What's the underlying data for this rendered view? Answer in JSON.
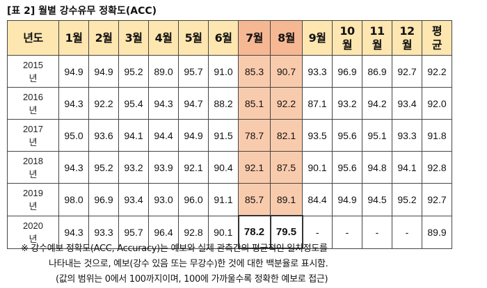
{
  "caption": "[표 2] 월별 강수유무 정확도(ACC)",
  "table": {
    "headers": [
      "년도",
      "1월",
      "2월",
      "3월",
      "4월",
      "5월",
      "6월",
      "7월",
      "8월",
      "9월",
      "10\n월",
      "11\n월",
      "12\n월",
      "평\n균"
    ],
    "rows": [
      {
        "year": "2015\n년",
        "values": [
          "94.9",
          "94.9",
          "95.2",
          "89.0",
          "95.7",
          "91.0",
          "85.3",
          "90.7",
          "93.3",
          "96.9",
          "86.9",
          "92.7",
          "92.2"
        ]
      },
      {
        "year": "2016\n년",
        "values": [
          "94.3",
          "92.2",
          "95.4",
          "94.3",
          "94.7",
          "88.2",
          "85.1",
          "92.2",
          "87.1",
          "93.2",
          "94.2",
          "93.4",
          "92.0"
        ]
      },
      {
        "year": "2017\n년",
        "values": [
          "95.0",
          "93.6",
          "94.1",
          "94.4",
          "94.9",
          "91.5",
          "78.7",
          "82.1",
          "93.5",
          "95.6",
          "95.1",
          "93.3",
          "91.8"
        ]
      },
      {
        "year": "2018\n년",
        "values": [
          "94.3",
          "95.2",
          "93.2",
          "93.9",
          "92.1",
          "90.4",
          "92.1",
          "87.5",
          "90.1",
          "95.6",
          "94.8",
          "94.1",
          "92.8"
        ]
      },
      {
        "year": "2019\n년",
        "values": [
          "98.0",
          "96.9",
          "93.4",
          "93.0",
          "96.0",
          "91.1",
          "85.7",
          "89.1",
          "84.4",
          "94.9",
          "94.5",
          "95.2",
          "92.7"
        ]
      },
      {
        "year": "2020\n년",
        "values": [
          "94.3",
          "93.3",
          "95.7",
          "96.4",
          "92.8",
          "90.1",
          "78.2",
          "79.5",
          "-",
          "-",
          "-",
          "-",
          "89.9"
        ]
      }
    ]
  },
  "notes": [
    "※ 강수예보 정확도(ACC, Accuracy)는 예보와 실제 관측간의 평균적인 일치정도를",
    "나타내는 것으로, 예보(강수 있음 또는 무강수)한 것에 대한 백분율로 표시함.",
    "(값의 범위는 0에서 100까지이며, 100에 가까울수록 정확한 예보로 접근)"
  ],
  "colors": {
    "header_bg": "#fde6b0",
    "highlight_header_bg": "#f6b893",
    "highlight_cell_bg": "#f9cbad"
  }
}
